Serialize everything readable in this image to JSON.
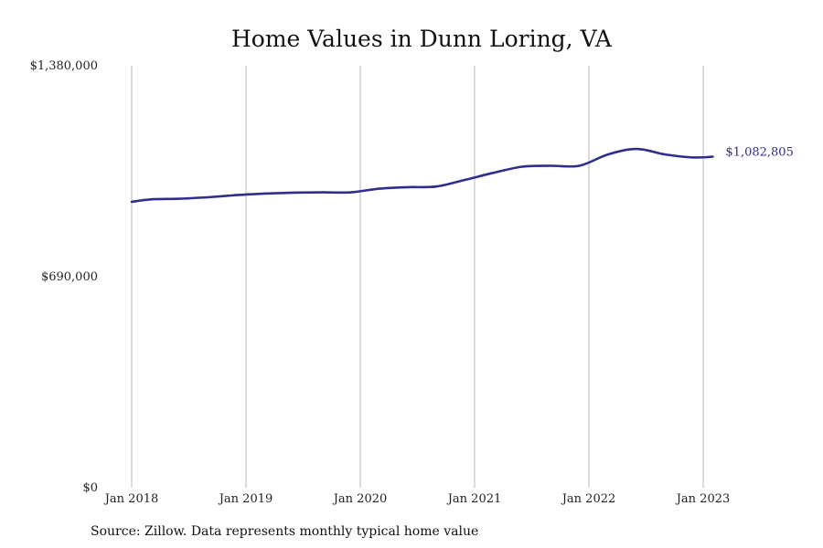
{
  "chart_data": {
    "type": "line",
    "title": "Home Values in Dunn Loring, VA",
    "xlabel": "",
    "ylabel": "",
    "ylim": [
      0,
      1380000
    ],
    "yticks": [
      0,
      690000,
      1380000
    ],
    "ytick_labels": [
      "$0",
      "$690,000",
      "$1,380,000"
    ],
    "xlim": [
      "2018-01",
      "2023-07"
    ],
    "xticks": [
      "2018-01",
      "2019-01",
      "2020-01",
      "2021-01",
      "2022-01",
      "2023-01"
    ],
    "xtick_labels": [
      "Jan 2018",
      "Jan 2019",
      "Jan 2020",
      "Jan 2021",
      "Jan 2022",
      "Jan 2023"
    ],
    "grid": "vertical",
    "color": "#2e2e8f",
    "end_label": "$1,082,805",
    "series": [
      {
        "x": [
          "2018-01",
          "2018-03",
          "2018-06",
          "2018-09",
          "2018-12",
          "2019-03",
          "2019-06",
          "2019-09",
          "2019-12",
          "2020-03",
          "2020-06",
          "2020-09",
          "2020-12",
          "2021-03",
          "2021-06",
          "2021-09",
          "2021-12",
          "2022-03",
          "2022-06",
          "2022-09",
          "2022-12",
          "2023-02"
        ],
        "y": [
          935000,
          943000,
          945000,
          950000,
          957000,
          962000,
          965000,
          966000,
          966000,
          978000,
          983000,
          985000,
          1007000,
          1030000,
          1050000,
          1053000,
          1053000,
          1090000,
          1108000,
          1090000,
          1080000,
          1082805
        ]
      }
    ]
  },
  "source_note": "Source: Zillow. Data represents monthly typical home value"
}
